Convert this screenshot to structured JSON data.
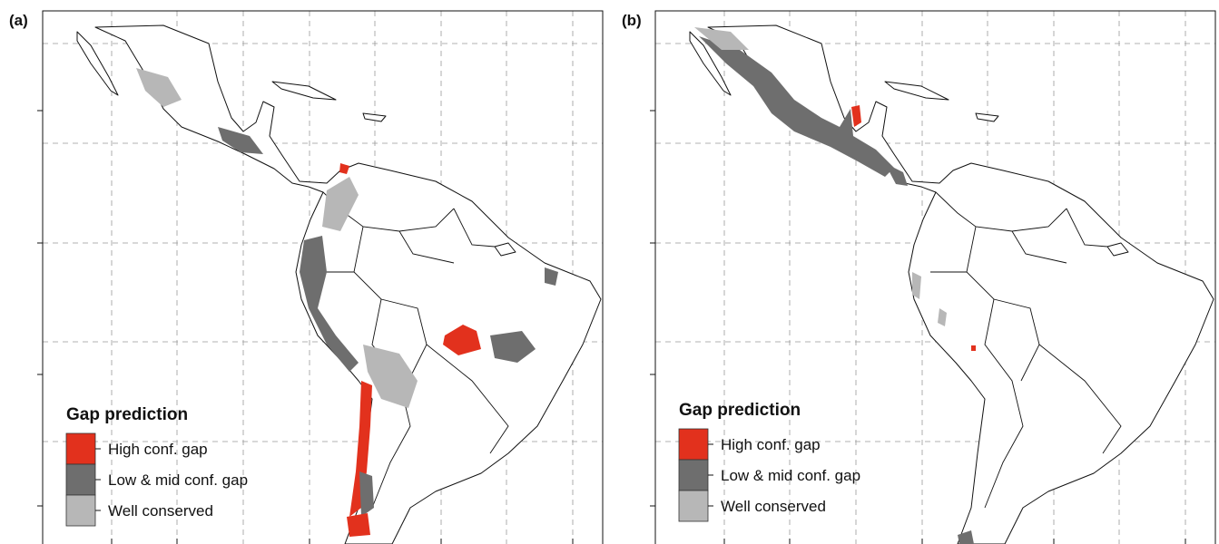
{
  "panels": [
    {
      "label": "(a)",
      "legend": {
        "title": "Gap prediction",
        "items": [
          {
            "label": "High conf. gap",
            "color": "#e2311d"
          },
          {
            "label": "Low & mid conf. gap",
            "color": "#6e6e6e"
          },
          {
            "label": "Well conserved",
            "color": "#b7b7b7"
          }
        ]
      }
    },
    {
      "label": "(b)",
      "legend": {
        "title": "Gap prediction",
        "items": [
          {
            "label": "High conf. gap",
            "color": "#e2311d"
          },
          {
            "label": "Low & mid conf. gap",
            "color": "#6e6e6e"
          },
          {
            "label": "Well conserved",
            "color": "#b7b7b7"
          }
        ]
      }
    }
  ]
}
